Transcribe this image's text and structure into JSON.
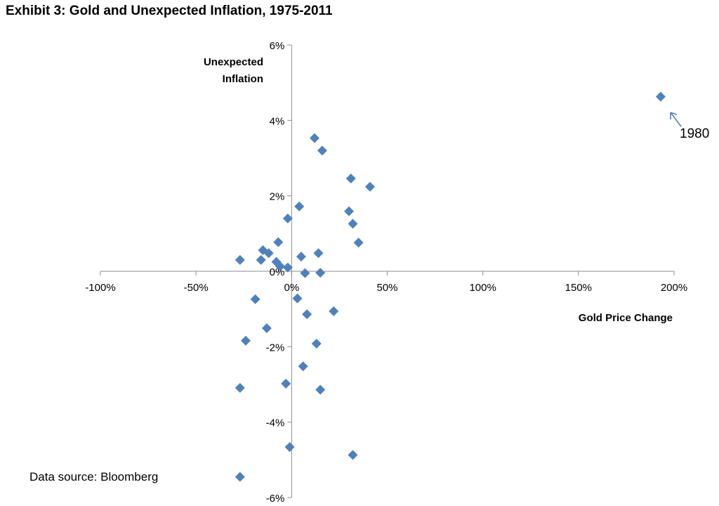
{
  "chart_data": {
    "type": "scatter",
    "title": "Exhibit 3: Gold and Unexpected Inflation, 1975-2011",
    "xlabel": "Gold Price Change",
    "ylabel_lines": [
      "Unexpected",
      "Inflation"
    ],
    "xlim": [
      -100,
      200
    ],
    "ylim": [
      -6,
      6
    ],
    "x_ticks": [
      -100,
      -50,
      0,
      50,
      100,
      150,
      200
    ],
    "x_tick_labels": [
      "-100%",
      "-50%",
      "0%",
      "50%",
      "100%",
      "150%",
      "200%"
    ],
    "y_ticks": [
      -6,
      -4,
      -2,
      0,
      2,
      4,
      6
    ],
    "y_tick_labels": [
      "-6%",
      "-4%",
      "-2%",
      "0%",
      "2%",
      "4%",
      "6%"
    ],
    "marker_color": "#4F81BD",
    "annotation": {
      "text": "1980",
      "x": 193,
      "y": 4.6
    },
    "source": "Data source: Bloomberg",
    "points": [
      {
        "x": 193,
        "y": 4.63
      },
      {
        "x": 12,
        "y": 3.53
      },
      {
        "x": 16,
        "y": 3.2
      },
      {
        "x": 31,
        "y": 2.46
      },
      {
        "x": 41,
        "y": 2.24
      },
      {
        "x": 4,
        "y": 1.72
      },
      {
        "x": 30,
        "y": 1.59
      },
      {
        "x": -2,
        "y": 1.4
      },
      {
        "x": 32,
        "y": 1.26
      },
      {
        "x": -7,
        "y": 0.77
      },
      {
        "x": 35,
        "y": 0.76
      },
      {
        "x": -15,
        "y": 0.56
      },
      {
        "x": -12,
        "y": 0.48
      },
      {
        "x": 14,
        "y": 0.48
      },
      {
        "x": 5,
        "y": 0.39
      },
      {
        "x": -27,
        "y": 0.3
      },
      {
        "x": -16,
        "y": 0.3
      },
      {
        "x": -8,
        "y": 0.25
      },
      {
        "x": -6,
        "y": 0.13
      },
      {
        "x": -2,
        "y": 0.1
      },
      {
        "x": 7,
        "y": -0.05
      },
      {
        "x": 15,
        "y": -0.04
      },
      {
        "x": -19,
        "y": -0.74
      },
      {
        "x": 3,
        "y": -0.72
      },
      {
        "x": 22,
        "y": -1.06
      },
      {
        "x": 8,
        "y": -1.14
      },
      {
        "x": -13,
        "y": -1.51
      },
      {
        "x": -24,
        "y": -1.84
      },
      {
        "x": 13,
        "y": -1.92
      },
      {
        "x": 6,
        "y": -2.52
      },
      {
        "x": -3,
        "y": -2.98
      },
      {
        "x": -27,
        "y": -3.09
      },
      {
        "x": 15,
        "y": -3.14
      },
      {
        "x": -1,
        "y": -4.66
      },
      {
        "x": 32,
        "y": -4.87
      },
      {
        "x": -27,
        "y": -5.45
      }
    ]
  }
}
